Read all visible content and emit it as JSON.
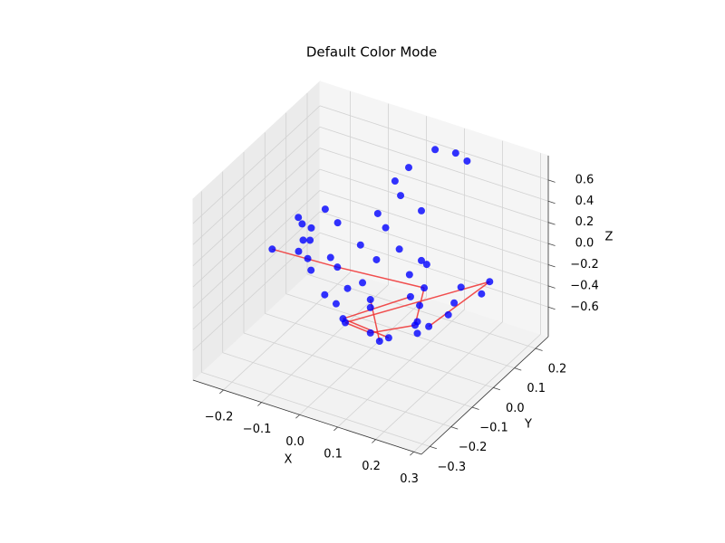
{
  "chart_data": {
    "type": "scatter3d",
    "title": "Default Color Mode",
    "xlabel": "X",
    "ylabel": "Y",
    "zlabel": "Z",
    "xlim": [
      -0.28,
      0.32
    ],
    "ylim": [
      -0.34,
      0.26
    ],
    "zlim": [
      -0.88,
      0.83
    ],
    "xticks": [
      {
        "value": -0.2,
        "label": "−0.2"
      },
      {
        "value": -0.1,
        "label": "−0.1"
      },
      {
        "value": 0,
        "label": "0.0"
      },
      0.1,
      0.2,
      0.3
    ],
    "yticks": [
      {
        "value": -0.3,
        "label": "−0.3"
      },
      {
        "value": -0.2,
        "label": "−0.2"
      },
      {
        "value": -0.1,
        "label": "−0.1"
      },
      {
        "value": 0,
        "label": "0.0"
      },
      0.1,
      0.2
    ],
    "zticks": [
      {
        "value": -0.6,
        "label": "−0.6"
      },
      {
        "value": -0.4,
        "label": "−0.4"
      },
      {
        "value": -0.2,
        "label": "−0.2"
      },
      {
        "value": 0,
        "label": "0.0"
      },
      0.2,
      0.4,
      0.6
    ],
    "grid": true,
    "color": "#0000ff",
    "line_color": "#f03030",
    "x": [
      0.056,
      0.11,
      0.14,
      0.02,
      -0.016,
      0.032,
      0.12,
      -0.028,
      0.026,
      -0.166,
      -0.17,
      -0.16,
      -0.136,
      -0.1,
      -0.124,
      -0.106,
      -0.172,
      -0.136,
      -0.04,
      0.062,
      0.002,
      -0.052,
      -0.112,
      0.12,
      0.134,
      -0.034,
      -0.07,
      0.122,
      0.266,
      0.224,
      0.278,
      0.194,
      0.032,
      0.026,
      -0.034,
      0.158,
      0.086,
      -0.004,
      0.086,
      0.182,
      0.206,
      0.224,
      0.014,
      0.02,
      0.176,
      0.17,
      0.206,
      0.086,
      0.176,
      0.134,
      0.11
    ],
    "y": [
      0.2,
      0.2,
      0.2,
      0.14,
      0.14,
      0.08,
      0.02,
      0.08,
      0.02,
      0.08,
      -0.04,
      -0.04,
      -0.04,
      0.02,
      -0.1,
      -0.1,
      -0.16,
      -0.1,
      0.02,
      0.02,
      0.02,
      -0.1,
      -0.1,
      0.02,
      0.02,
      -0.1,
      -0.16,
      -0.04,
      0.08,
      0.02,
      0.02,
      -0.1,
      -0.1,
      -0.16,
      -0.16,
      -0.1,
      -0.16,
      -0.16,
      -0.16,
      -0.1,
      0.02,
      -0.04,
      -0.16,
      -0.16,
      -0.1,
      -0.1,
      -0.1,
      -0.16,
      -0.1,
      -0.16,
      -0.16
    ],
    "z": [
      0.69,
      0.72,
      0.68,
      0.59,
      0.42,
      0.45,
      0.52,
      0.21,
      0.25,
      0.09,
      0.23,
      0.18,
      0.17,
      0.15,
      0.18,
      0.2,
      0.15,
      0.06,
      0.01,
      0.09,
      -0.08,
      0.1,
      0.02,
      0.05,
      0.03,
      0.03,
      0.07,
      0.03,
      -0.09,
      -0.08,
      -0.08,
      0.1,
      -0.04,
      0.01,
      -0.12,
      -0.025,
      -0.025,
      -0.17,
      -0.1,
      -0.08,
      -0.25,
      -0.23,
      -0.29,
      -0.32,
      -0.24,
      -0.28,
      -0.25,
      -0.34,
      -0.35,
      -0.33,
      -0.39
    ],
    "edges": [
      [
        16,
        25
      ],
      [
        25,
        31
      ],
      [
        31,
        45
      ],
      [
        28,
        43
      ],
      [
        28,
        46
      ],
      [
        42,
        49
      ],
      [
        43,
        47
      ],
      [
        47,
        45
      ],
      [
        36,
        50
      ],
      [
        35,
        42
      ]
    ]
  }
}
